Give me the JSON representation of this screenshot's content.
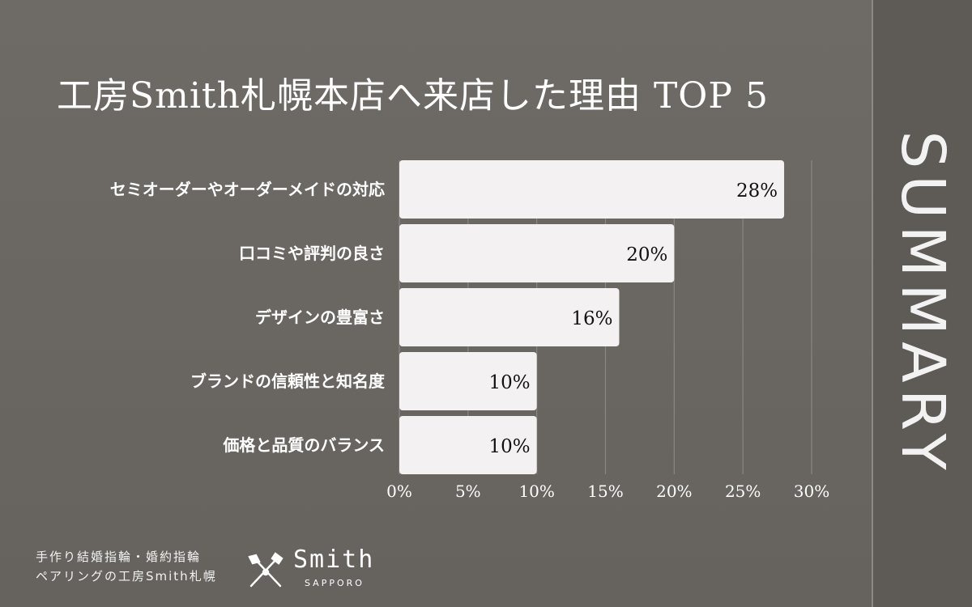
{
  "chart_data": {
    "type": "bar",
    "orientation": "horizontal",
    "title": "工房Smith札幌本店へ来店した理由 TOP 5",
    "categories": [
      "セミオーダーやオーダーメイドの対応",
      "口コミや評判の良さ",
      "デザインの豊富さ",
      "ブランドの信頼性と知名度",
      "価格と品質のバランス"
    ],
    "values": [
      28,
      20,
      16,
      10,
      10
    ],
    "value_labels": [
      "28%",
      "20%",
      "16%",
      "10%",
      "10%"
    ],
    "x_ticks": [
      0,
      5,
      10,
      15,
      20,
      25,
      30
    ],
    "x_tick_labels": [
      "0%",
      "5%",
      "10%",
      "15%",
      "20%",
      "25%",
      "30%"
    ],
    "xlim": [
      0,
      30
    ],
    "grid": true,
    "colors": {
      "bar": "#f4f1f3",
      "grid": "#8a8782",
      "label": "#ffffff",
      "value": "#111111"
    }
  },
  "side": {
    "text": "SUMMARY"
  },
  "footer": {
    "tagline_1": "手作り結婚指輪・婚約指輪",
    "tagline_2": "ペアリングの工房Smith札幌",
    "logo_name": "Smith",
    "logo_sub": "SAPPORO"
  }
}
